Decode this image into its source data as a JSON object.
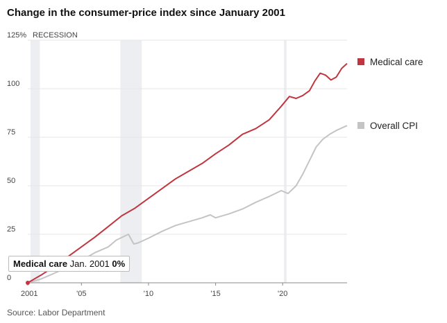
{
  "title": "Change in the consumer-price index since January 2001",
  "source": "Source: Labor Department",
  "tooltip": {
    "series": "Medical care",
    "date": "Jan. 2001",
    "value": "0%"
  },
  "colors": {
    "medical": "#c0353f",
    "overall": "#c4c4c4",
    "recession": "#eceef1",
    "grid": "#e6e6e6",
    "axis": "#888888"
  },
  "chart_data": {
    "type": "line",
    "title": "Change in the consumer-price index since January 2001",
    "ylabel": "",
    "y_unit": "%",
    "ylim": [
      0,
      125
    ],
    "yticks": [
      0,
      25,
      50,
      75,
      100,
      125
    ],
    "ytick_labels": [
      "0",
      "25",
      "50",
      "75",
      "100",
      "125%"
    ],
    "xlim": [
      2001.0,
      2024.8
    ],
    "xticks": [
      2001,
      2005,
      2010,
      2015,
      2020
    ],
    "xtick_labels": [
      "2001",
      "'05",
      "'10",
      "'15",
      "'20"
    ],
    "recession_label": "RECESSION",
    "recessions": [
      [
        2001.2,
        2001.9
      ],
      [
        2007.9,
        2009.5
      ],
      [
        2020.1,
        2020.3
      ]
    ],
    "grid": true,
    "legend_position": "right",
    "series": [
      {
        "name": "Medical care",
        "color": "#c0353f",
        "x": [
          2001.0,
          2002.0,
          2003.0,
          2004.0,
          2005.0,
          2006.0,
          2007.0,
          2008.0,
          2009.0,
          2010.0,
          2011.0,
          2012.0,
          2013.0,
          2014.0,
          2015.0,
          2016.0,
          2017.0,
          2018.0,
          2019.0,
          2019.9,
          2020.5,
          2021.0,
          2021.5,
          2022.0,
          2022.4,
          2022.8,
          2023.2,
          2023.6,
          2024.0,
          2024.4,
          2024.8
        ],
        "y": [
          0,
          4,
          8.5,
          13.5,
          18.5,
          23.5,
          29,
          34.5,
          38.5,
          43.5,
          48.5,
          53.5,
          57.5,
          61.5,
          66.5,
          71,
          76.5,
          79.5,
          84,
          91,
          96,
          95,
          96.5,
          99,
          104,
          108,
          107,
          104.5,
          106,
          110.5,
          113
        ]
      },
      {
        "name": "Overall CPI",
        "color": "#c4c4c4",
        "x": [
          2001.0,
          2002.0,
          2003.0,
          2004.0,
          2005.0,
          2006.0,
          2007.0,
          2007.6,
          2008.5,
          2008.9,
          2009.2,
          2010.0,
          2011.0,
          2012.0,
          2013.0,
          2014.0,
          2014.6,
          2015.0,
          2016.0,
          2017.0,
          2018.0,
          2019.0,
          2019.9,
          2020.4,
          2021.0,
          2021.5,
          2022.0,
          2022.5,
          2023.0,
          2023.5,
          2024.0,
          2024.8
        ],
        "y": [
          0,
          2,
          5,
          8,
          11.5,
          15.5,
          18.5,
          22,
          25,
          20,
          20.5,
          23,
          26.5,
          29.5,
          31.5,
          33.5,
          35,
          33.5,
          35.5,
          38,
          41.5,
          44.5,
          47.5,
          46,
          50,
          56,
          63,
          70,
          74,
          76.5,
          78.5,
          81
        ]
      }
    ]
  }
}
